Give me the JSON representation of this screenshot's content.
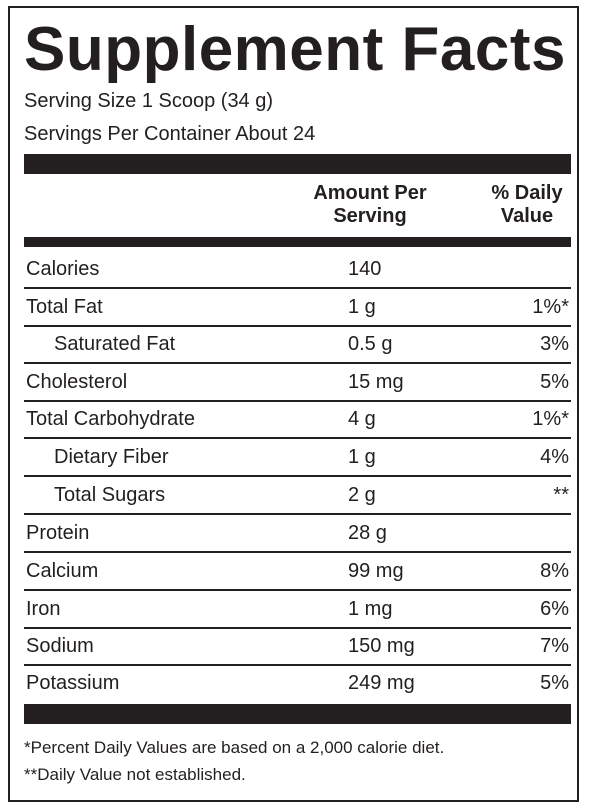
{
  "title": "Supplement Facts",
  "serving_size": "Serving  Size 1 Scoop (34 g)",
  "servings_per_container": "Servings Per Container About 24",
  "header": {
    "amount_line1": "Amount  Per",
    "amount_line2": "Serving",
    "dv_line1": "% Daily",
    "dv_line2": "Value"
  },
  "rows": [
    {
      "name": "Calories",
      "amount": "140",
      "dv": ""
    },
    {
      "name": "Total Fat",
      "amount": "1 g",
      "dv": "1%*"
    },
    {
      "name": "Saturated Fat",
      "amount": "0.5 g",
      "dv": "3%"
    },
    {
      "name": "Cholesterol",
      "amount": "15 mg",
      "dv": "5%"
    },
    {
      "name": "Total Carbohydrate",
      "amount": "4 g",
      "dv": "1%*"
    },
    {
      "name": "Dietary Fiber",
      "amount": "1 g",
      "dv": "4%"
    },
    {
      "name": "Total Sugars",
      "amount": "2 g",
      "dv": "**"
    },
    {
      "name": "Protein",
      "amount": "28 g",
      "dv": ""
    },
    {
      "name": "Calcium",
      "amount": "99 mg",
      "dv": "8%"
    },
    {
      "name": "Iron",
      "amount": "1 mg",
      "dv": "6%"
    },
    {
      "name": "Sodium",
      "amount": "150 mg",
      "dv": "7%"
    },
    {
      "name": "Potassium",
      "amount": "249 mg",
      "dv": "5%"
    }
  ],
  "footnotes": [
    "*Percent Daily Values are based on a 2,000 calorie diet.",
    "**Daily Value not established."
  ]
}
